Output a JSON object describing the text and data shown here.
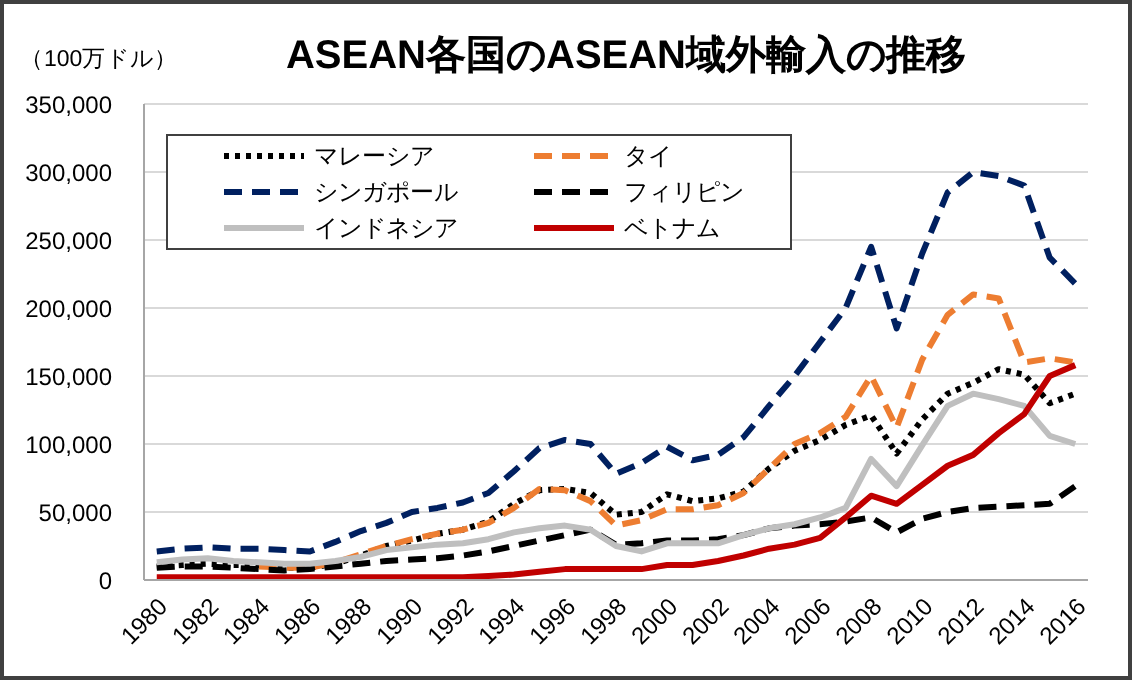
{
  "chart_data": {
    "type": "line",
    "title": "ASEAN各国のASEAN域外輸入の推移",
    "ylabel": "（100万ドル）",
    "categories": [
      "1980",
      null,
      "1982",
      null,
      "1984",
      null,
      "1986",
      null,
      "1988",
      null,
      "1990",
      null,
      "1992",
      null,
      "1994",
      null,
      "1996",
      null,
      "1998",
      null,
      "2000",
      null,
      "2002",
      null,
      "2004",
      null,
      "2006",
      null,
      "2008",
      null,
      "2010",
      null,
      "2012",
      null,
      "2014",
      null,
      "2016"
    ],
    "ylim": [
      0,
      350000
    ],
    "yticks": [
      0,
      {
        "value": 50000,
        "label": "50,000"
      },
      {
        "value": 100000,
        "label": "100,000"
      },
      {
        "value": 150000,
        "label": "150,000"
      },
      {
        "value": 200000,
        "label": "200,000"
      },
      {
        "value": 250000,
        "label": "250,000"
      },
      {
        "value": 300000,
        "label": "300,000"
      },
      {
        "value": 350000,
        "label": "350,000"
      }
    ],
    "grid": "y",
    "legend": "top left",
    "series": [
      {
        "name": "マレーシア",
        "color": "#000000",
        "line_style": "dotted",
        "values": [
          10000,
          11000,
          12000,
          11000,
          11000,
          9000,
          9000,
          12000,
          18000,
          25000,
          29000,
          34000,
          37000,
          43000,
          56000,
          66000,
          67000,
          64000,
          48000,
          50000,
          63000,
          58000,
          60000,
          65000,
          82000,
          95000,
          103000,
          114000,
          121000,
          93000,
          118000,
          137000,
          145000,
          155000,
          151000,
          130000,
          137000
        ]
      },
      {
        "name": "タイ",
        "color": "#ed7d31",
        "line_style": "dashed",
        "values": [
          null,
          null,
          null,
          null,
          10000,
          9000,
          9000,
          13000,
          19000,
          25000,
          30000,
          34000,
          37000,
          42000,
          53000,
          67000,
          66000,
          58000,
          40000,
          44000,
          52000,
          52000,
          55000,
          64000,
          82000,
          100000,
          108000,
          120000,
          150000,
          112000,
          162000,
          195000,
          210000,
          207000,
          160000,
          163000,
          160000
        ]
      },
      {
        "name": "シンガポール",
        "color": "#002060",
        "line_style": "dashed",
        "values": [
          21000,
          23000,
          24000,
          23000,
          23000,
          22000,
          21000,
          28000,
          36000,
          42000,
          50000,
          53000,
          57000,
          64000,
          80000,
          97000,
          103000,
          100000,
          78000,
          86000,
          98000,
          88000,
          92000,
          105000,
          128000,
          150000,
          175000,
          200000,
          245000,
          185000,
          240000,
          285000,
          300000,
          297000,
          290000,
          237000,
          218000
        ]
      },
      {
        "name": "フィリピン",
        "color": "#000000",
        "line_style": "dashed",
        "values": [
          9000,
          10000,
          10000,
          9000,
          8000,
          7000,
          8000,
          10000,
          12000,
          14000,
          15000,
          16000,
          18000,
          21000,
          25000,
          29000,
          33000,
          37000,
          26000,
          27000,
          29000,
          29000,
          30000,
          33000,
          38000,
          40000,
          41000,
          43000,
          46000,
          35000,
          45000,
          50000,
          53000,
          54000,
          55000,
          56000,
          69000
        ]
      },
      {
        "name": "インドネシア",
        "color": "#bfbfbf",
        "line_style": "solid",
        "values": [
          13000,
          15000,
          16000,
          14000,
          13000,
          12000,
          12000,
          14000,
          17000,
          22000,
          24000,
          26000,
          27000,
          30000,
          35000,
          38000,
          40000,
          37000,
          25000,
          21000,
          27000,
          27000,
          27000,
          33000,
          38000,
          41000,
          46000,
          53000,
          89000,
          69000,
          99000,
          128000,
          137000,
          133000,
          128000,
          106000,
          100000
        ]
      },
      {
        "name": "ベトナム",
        "color": "#c00000",
        "line_style": "solid",
        "values": [
          2000,
          2000,
          2000,
          2000,
          2000,
          2000,
          2000,
          2000,
          2000,
          2000,
          2000,
          2000,
          2000,
          3000,
          4000,
          6000,
          8000,
          8000,
          8000,
          8000,
          11000,
          11000,
          14000,
          18000,
          23000,
          26000,
          31000,
          46000,
          62000,
          56000,
          70000,
          84000,
          92000,
          108000,
          122000,
          150000,
          158000
        ]
      }
    ]
  }
}
